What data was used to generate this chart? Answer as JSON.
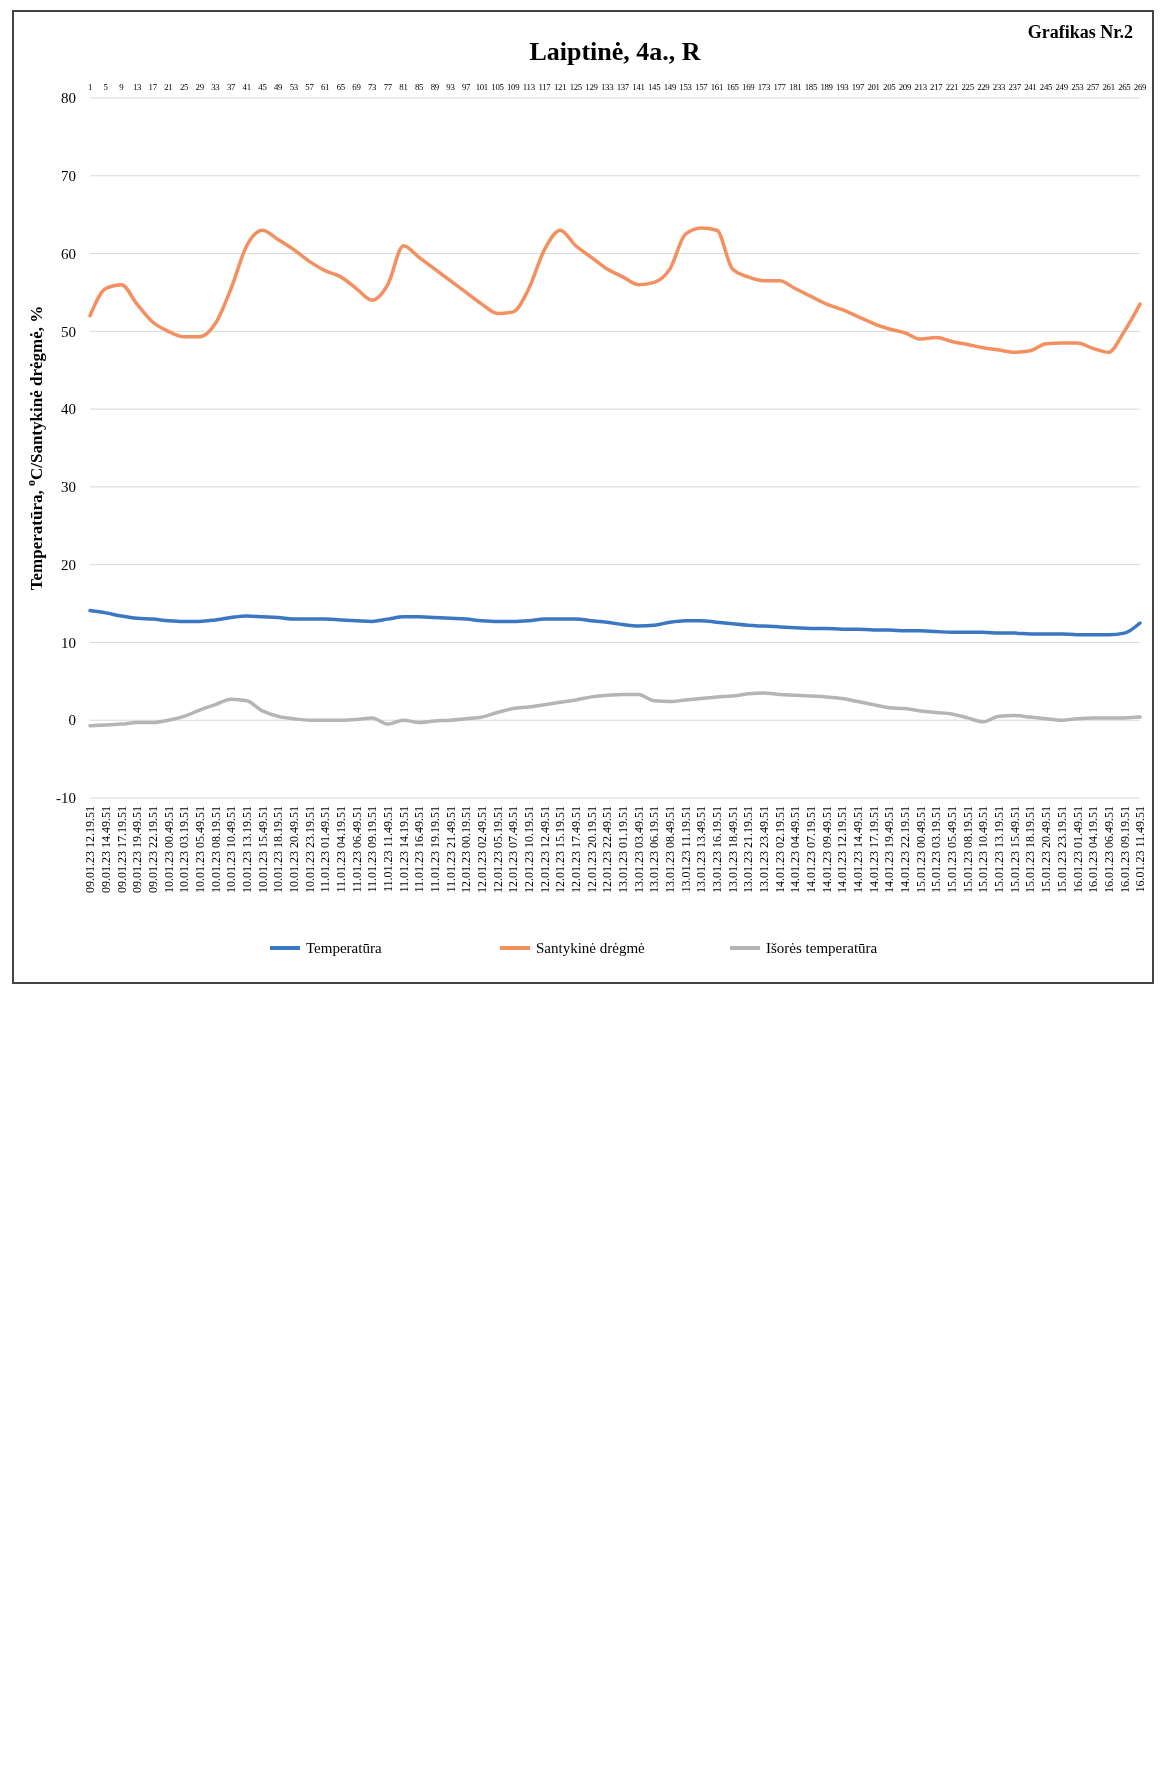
{
  "chart_data": {
    "type": "line",
    "title": "Laiptinė, 4a., R",
    "ylabel": "Temperatūra, $^{o}$C/Santykinė drėgmė, %",
    "annotations": [
      "Grafikas Nr.2"
    ],
    "categories": [
      "09.01.23 12.19.51",
      "09.01.23 14.49.51",
      "09.01.23 17.19.51",
      "09.01.23 19.49.51",
      "09.01.23 22.19.51",
      "10.01.23 00.49.51",
      "10.01.23 03.19.51",
      "10.01.23 05.49.51",
      "10.01.23 08.19.51",
      "10.01.23 10.49.51",
      "10.01.23 13.19.51",
      "10.01.23 15.49.51",
      "10.01.23 18.19.51",
      "10.01.23 20.49.51",
      "10.01.23 23.19.51",
      "11.01.23 01.49.51",
      "11.01.23 04.19.51",
      "11.01.23 06.49.51",
      "11.01.23 09.19.51",
      "11.01.23 11.49.51",
      "11.01.23 14.19.51",
      "11.01.23 16.49.51",
      "11.01.23 19.19.51",
      "11.01.23 21.49.51",
      "12.01.23 00.19.51",
      "12.01.23 02.49.51",
      "12.01.23 05.19.51",
      "12.01.23 07.49.51",
      "12.01.23 10.19.51",
      "12.01.23 12.49.51",
      "12.01.23 15.19.51",
      "12.01.23 17.49.51",
      "12.01.23 20.19.51",
      "12.01.23 22.49.51",
      "13.01.23 01.19.51",
      "13.01.23 03.49.51",
      "13.01.23 06.19.51",
      "13.01.23 08.49.51",
      "13.01.23 11.19.51",
      "13.01.23 13.49.51",
      "13.01.23 16.19.51",
      "13.01.23 18.49.51",
      "13.01.23 21.19.51",
      "13.01.23 23.49.51",
      "14.01.23 02.19.51",
      "14.01.23 04.49.51",
      "14.01.23 07.19.51",
      "14.01.23 09.49.51",
      "14.01.23 12.19.51",
      "14.01.23 14.49.51",
      "14.01.23 17.19.51",
      "14.01.23 19.49.51",
      "14.01.23 22.19.51",
      "15.01.23 00.49.51",
      "15.01.23 03.19.51",
      "15.01.23 05.49.51",
      "15.01.23 08.19.51",
      "15.01.23 10.49.51",
      "15.01.23 13.19.51",
      "15.01.23 15.49.51",
      "15.01.23 18.19.51",
      "15.01.23 20.49.51",
      "15.01.23 23.19.51",
      "16.01.23 01.49.51",
      "16.01.23 04.19.51",
      "16.01.23 06.49.51",
      "16.01.23 09.19.51",
      "16.01.23 11.49.51"
    ],
    "x2lim": [
      1,
      269
    ],
    "x2ticks": [
      1,
      5,
      9,
      13,
      17,
      21,
      25,
      29,
      33,
      37,
      41,
      45,
      49,
      53,
      57,
      61,
      65,
      69,
      73,
      77,
      81,
      85,
      89,
      93,
      97,
      101,
      105,
      109,
      113,
      117,
      121,
      125,
      129,
      133,
      137,
      141,
      145,
      149,
      153,
      157,
      161,
      165,
      169,
      173,
      177,
      181,
      185,
      189,
      193,
      197,
      201,
      205,
      209,
      213,
      217,
      221,
      225,
      229,
      233,
      237,
      241,
      245,
      249,
      253,
      257,
      261,
      265,
      269
    ],
    "series": [
      {
        "name": "Temperatūra",
        "color": "#3a78c4",
        "values": [
          14.1,
          13.8,
          13.4,
          13.1,
          13,
          12.8,
          12.7,
          12.7,
          12.9,
          13.2,
          13.4,
          13.3,
          13.2,
          13,
          13,
          13,
          12.9,
          12.8,
          12.7,
          13,
          13.3,
          13.3,
          13.2,
          13.1,
          13,
          12.8,
          12.7,
          12.7,
          12.8,
          13,
          13,
          13,
          12.8,
          12.6,
          12.3,
          12.1,
          12.2,
          12.6,
          12.8,
          12.8,
          12.6,
          12.4,
          12.2,
          12.1,
          12,
          11.9,
          11.8,
          11.8,
          11.7,
          11.7,
          11.6,
          11.6,
          11.5,
          11.5,
          11.4,
          11.3,
          11.3,
          11.3,
          11.2,
          11.2,
          11.1,
          11.1,
          11.1,
          11,
          11,
          11,
          11.2,
          12.5
        ]
      },
      {
        "name": "Santykinė drėgmė",
        "color": "#f4905f",
        "values": [
          52,
          55.5,
          56,
          53.5,
          51.2,
          50,
          49.3,
          49.3,
          51,
          55.5,
          61,
          63,
          61.8,
          60.5,
          59,
          57.8,
          57,
          55.5,
          54,
          56,
          61,
          59.5,
          58,
          56.5,
          55,
          53.5,
          52.3,
          52.5,
          55.5,
          60.5,
          63,
          61,
          59.5,
          58,
          57,
          56,
          56.3,
          58,
          62.5,
          63.3,
          63,
          58,
          57,
          56.5,
          56.5,
          55.5,
          54.5,
          53.5,
          52.8,
          51.9,
          51,
          50.3,
          49.8,
          49,
          49.2,
          48.7,
          48.3,
          47.9,
          47.6,
          47.3,
          47.5,
          48.4,
          48.5,
          48.5,
          47.8,
          47.3,
          50,
          53.5
        ]
      },
      {
        "name": "Išorės temperatūra",
        "color": "#b5b5b5",
        "values": [
          -0.7,
          -0.6,
          -0.5,
          -0.3,
          -0.3,
          0,
          0.5,
          1.3,
          2,
          2.7,
          2.5,
          1.2,
          0.5,
          0.2,
          0,
          0,
          0,
          0.1,
          0.3,
          -0.5,
          0,
          -0.3,
          -0.1,
          0,
          0.2,
          0.4,
          1,
          1.5,
          1.7,
          2,
          2.3,
          2.6,
          3,
          3.2,
          3.3,
          3.3,
          2.5,
          2.4,
          2.6,
          2.8,
          3,
          3.1,
          3.4,
          3.5,
          3.3,
          3.2,
          3.1,
          3,
          2.8,
          2.4,
          2,
          1.6,
          1.5,
          1.2,
          1,
          0.8,
          0.3,
          -0.2,
          0.5,
          0.6,
          0.4,
          0.2,
          0,
          0.2,
          0.3,
          0.3,
          0.3,
          0.4
        ]
      }
    ],
    "ylim": [
      -10,
      80
    ],
    "yticks": [
      -10,
      0,
      10,
      20,
      30,
      40,
      50,
      60,
      70,
      80
    ],
    "grid": "y",
    "legend": "bottom",
    "marker": "none",
    "line_style": "solid"
  }
}
